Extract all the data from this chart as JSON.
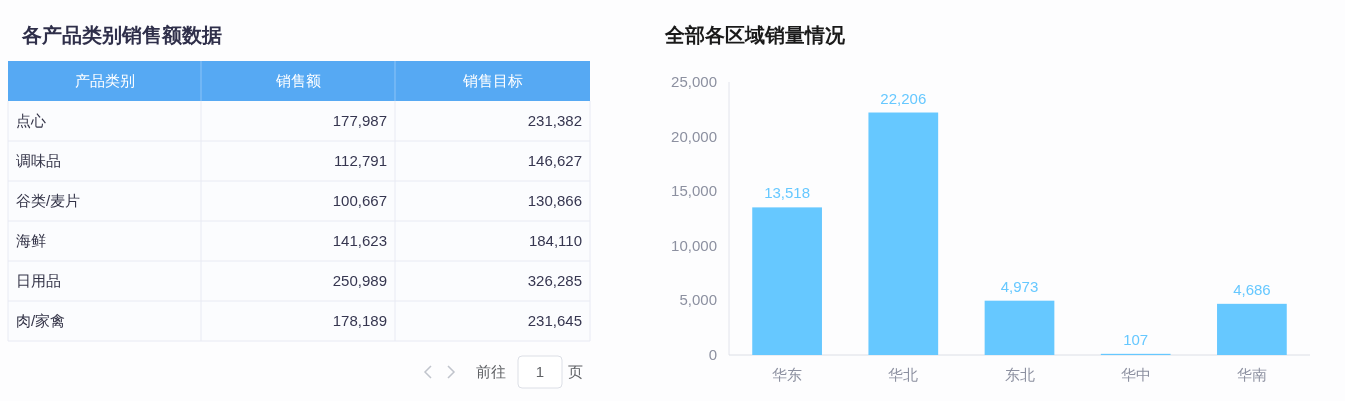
{
  "chart_data": [
    {
      "type": "other",
      "title": "各产品类别销售额数据",
      "xlabel": "产品类别",
      "categories": [
        "点心",
        "调味品",
        "谷类/麦片",
        "海鲜",
        "日用品",
        "肉/家禽"
      ],
      "series": [
        {
          "name": "销售额",
          "values": [
            177987,
            112791,
            100667,
            141623,
            250989,
            178189
          ],
          "value_labels": [
            "177,987",
            "112,791",
            "100,667",
            "141,623",
            "250,989",
            "178,189"
          ]
        },
        {
          "name": "销售目标",
          "values": [
            231382,
            146627,
            130866,
            184110,
            326285,
            231645
          ],
          "value_labels": [
            "231,382",
            "146,627",
            "130,866",
            "184,110",
            "326,285",
            "231,645"
          ]
        }
      ],
      "annotations": [
        "前往",
        "1",
        "页"
      ]
    },
    {
      "type": "bar",
      "title": "全部各区域销量情况",
      "categories": [
        "华东",
        "华北",
        "东北",
        "华中",
        "华南"
      ],
      "values": [
        13518,
        22206,
        4973,
        107,
        4686
      ],
      "value_labels": [
        "13,518",
        "22,206",
        "4,973",
        "107",
        "4,686"
      ],
      "color": "#66c8ff",
      "ylim": [
        0,
        25000
      ],
      "yticks": [
        0,
        {
          "value": 5000,
          "label": "5,000"
        },
        {
          "value": 10000,
          "label": "10,000"
        },
        {
          "value": 15000,
          "label": "15,000"
        },
        {
          "value": 20000,
          "label": "20,000"
        },
        {
          "value": 25000,
          "label": "25,000"
        }
      ]
    }
  ]
}
